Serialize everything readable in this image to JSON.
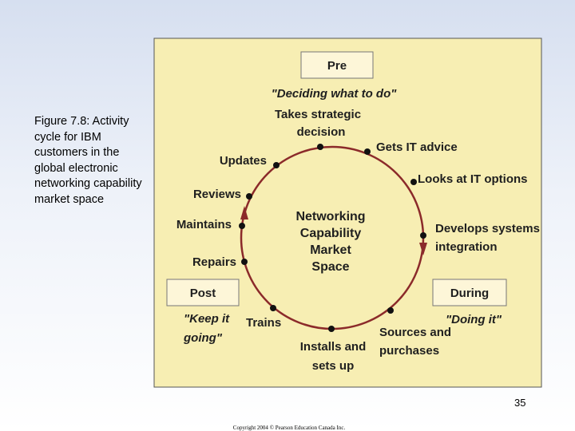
{
  "caption": [
    "Figure 7.8: Activity",
    "cycle for IBM",
    "customers in the",
    "global electronic",
    "networking capability",
    "market space"
  ],
  "diagram": {
    "center_label": [
      "Networking",
      "Capability",
      "Market",
      "Space"
    ],
    "phases": [
      {
        "label": "Pre",
        "quote": [
          "\"Deciding what to do\""
        ]
      },
      {
        "label": "During",
        "quote": [
          "\"Doing it\""
        ]
      },
      {
        "label": "Post",
        "quote": [
          "\"Keep it",
          "going\""
        ]
      }
    ],
    "nodes": [
      {
        "label": [
          "Takes strategic",
          "decision"
        ]
      },
      {
        "label": [
          "Gets IT advice"
        ]
      },
      {
        "label": [
          "Looks at IT options"
        ]
      },
      {
        "label": [
          "Develops systems",
          "integration"
        ]
      },
      {
        "label": [
          "Sources and",
          "purchases"
        ]
      },
      {
        "label": [
          "Installs and",
          "sets up"
        ]
      },
      {
        "label": [
          "Trains"
        ]
      },
      {
        "label": [
          "Repairs"
        ]
      },
      {
        "label": [
          "Maintains"
        ]
      },
      {
        "label": [
          "Reviews"
        ]
      },
      {
        "label": [
          "Updates"
        ]
      }
    ]
  },
  "page_number": "35",
  "copyright": "Copyright 2004 © Pearson Education Canada Inc."
}
